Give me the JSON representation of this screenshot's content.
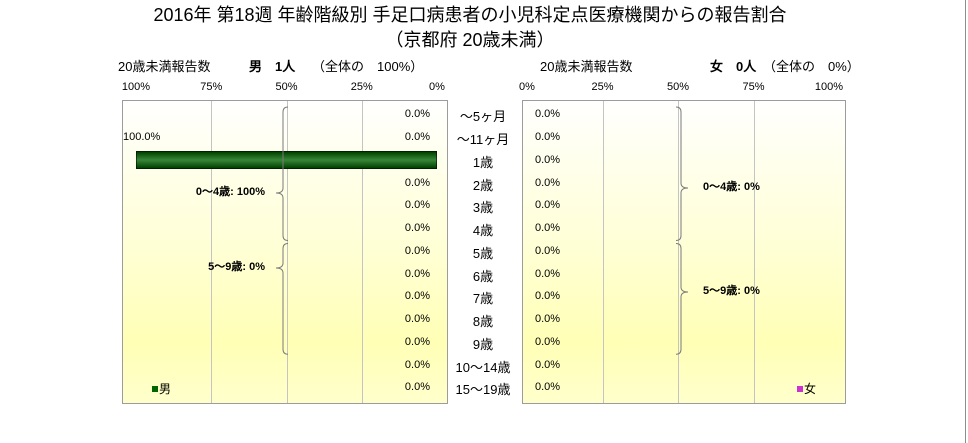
{
  "chart_data": {
    "type": "bar",
    "orientation": "horizontal",
    "title": "2016年 第18週 年齢階級別 手足口病患者の小児科定点医療機関からの報告割合",
    "subtitle": "（京都府 20歳未満）",
    "categories": [
      "～5ヶ月",
      "～11ヶ月",
      "1歳",
      "2歳",
      "3歳",
      "4歳",
      "5歳",
      "6歳",
      "7歳",
      "8歳",
      "9歳",
      "10～14歳",
      "15～19歳"
    ],
    "xlim": [
      0,
      100
    ],
    "grid": true,
    "series": [
      {
        "name": "男",
        "color": "#006400",
        "legend_position": "bottom-left",
        "header_label": "20歳未満報告数",
        "header_count": "男　1人",
        "header_share": "（全体の　100%）",
        "ticks": [
          "100%",
          "75%",
          "50%",
          "25%",
          "0%"
        ],
        "values": [
          0,
          0,
          100,
          0,
          0,
          0,
          0,
          0,
          0,
          0,
          0,
          0,
          0
        ],
        "value_labels": [
          "0.0%",
          "0.0%",
          "100.0%",
          "0.0%",
          "0.0%",
          "0.0%",
          "0.0%",
          "0.0%",
          "0.0%",
          "0.0%",
          "0.0%",
          "0.0%",
          "0.0%"
        ],
        "groups": [
          {
            "label": "0～4歳: 100%",
            "from_index": 0,
            "to_index": 5
          },
          {
            "label": "5～9歳: 0%",
            "from_index": 6,
            "to_index": 10
          }
        ]
      },
      {
        "name": "女",
        "color": "#cc33cc",
        "legend_position": "bottom-right",
        "header_label": "20歳未満報告数",
        "header_count": "女　0人",
        "header_share": "（全体の　0%）",
        "ticks": [
          "0%",
          "25%",
          "50%",
          "75%",
          "100%"
        ],
        "values": [
          0,
          0,
          0,
          0,
          0,
          0,
          0,
          0,
          0,
          0,
          0,
          0,
          0
        ],
        "value_labels": [
          "0.0%",
          "0.0%",
          "0.0%",
          "0.0%",
          "0.0%",
          "0.0%",
          "0.0%",
          "0.0%",
          "0.0%",
          "0.0%",
          "0.0%",
          "0.0%",
          "0.0%"
        ],
        "groups": [
          {
            "label": "0～4歳: 0%",
            "from_index": 0,
            "to_index": 5
          },
          {
            "label": "5～9歳: 0%",
            "from_index": 6,
            "to_index": 10
          }
        ]
      }
    ]
  }
}
